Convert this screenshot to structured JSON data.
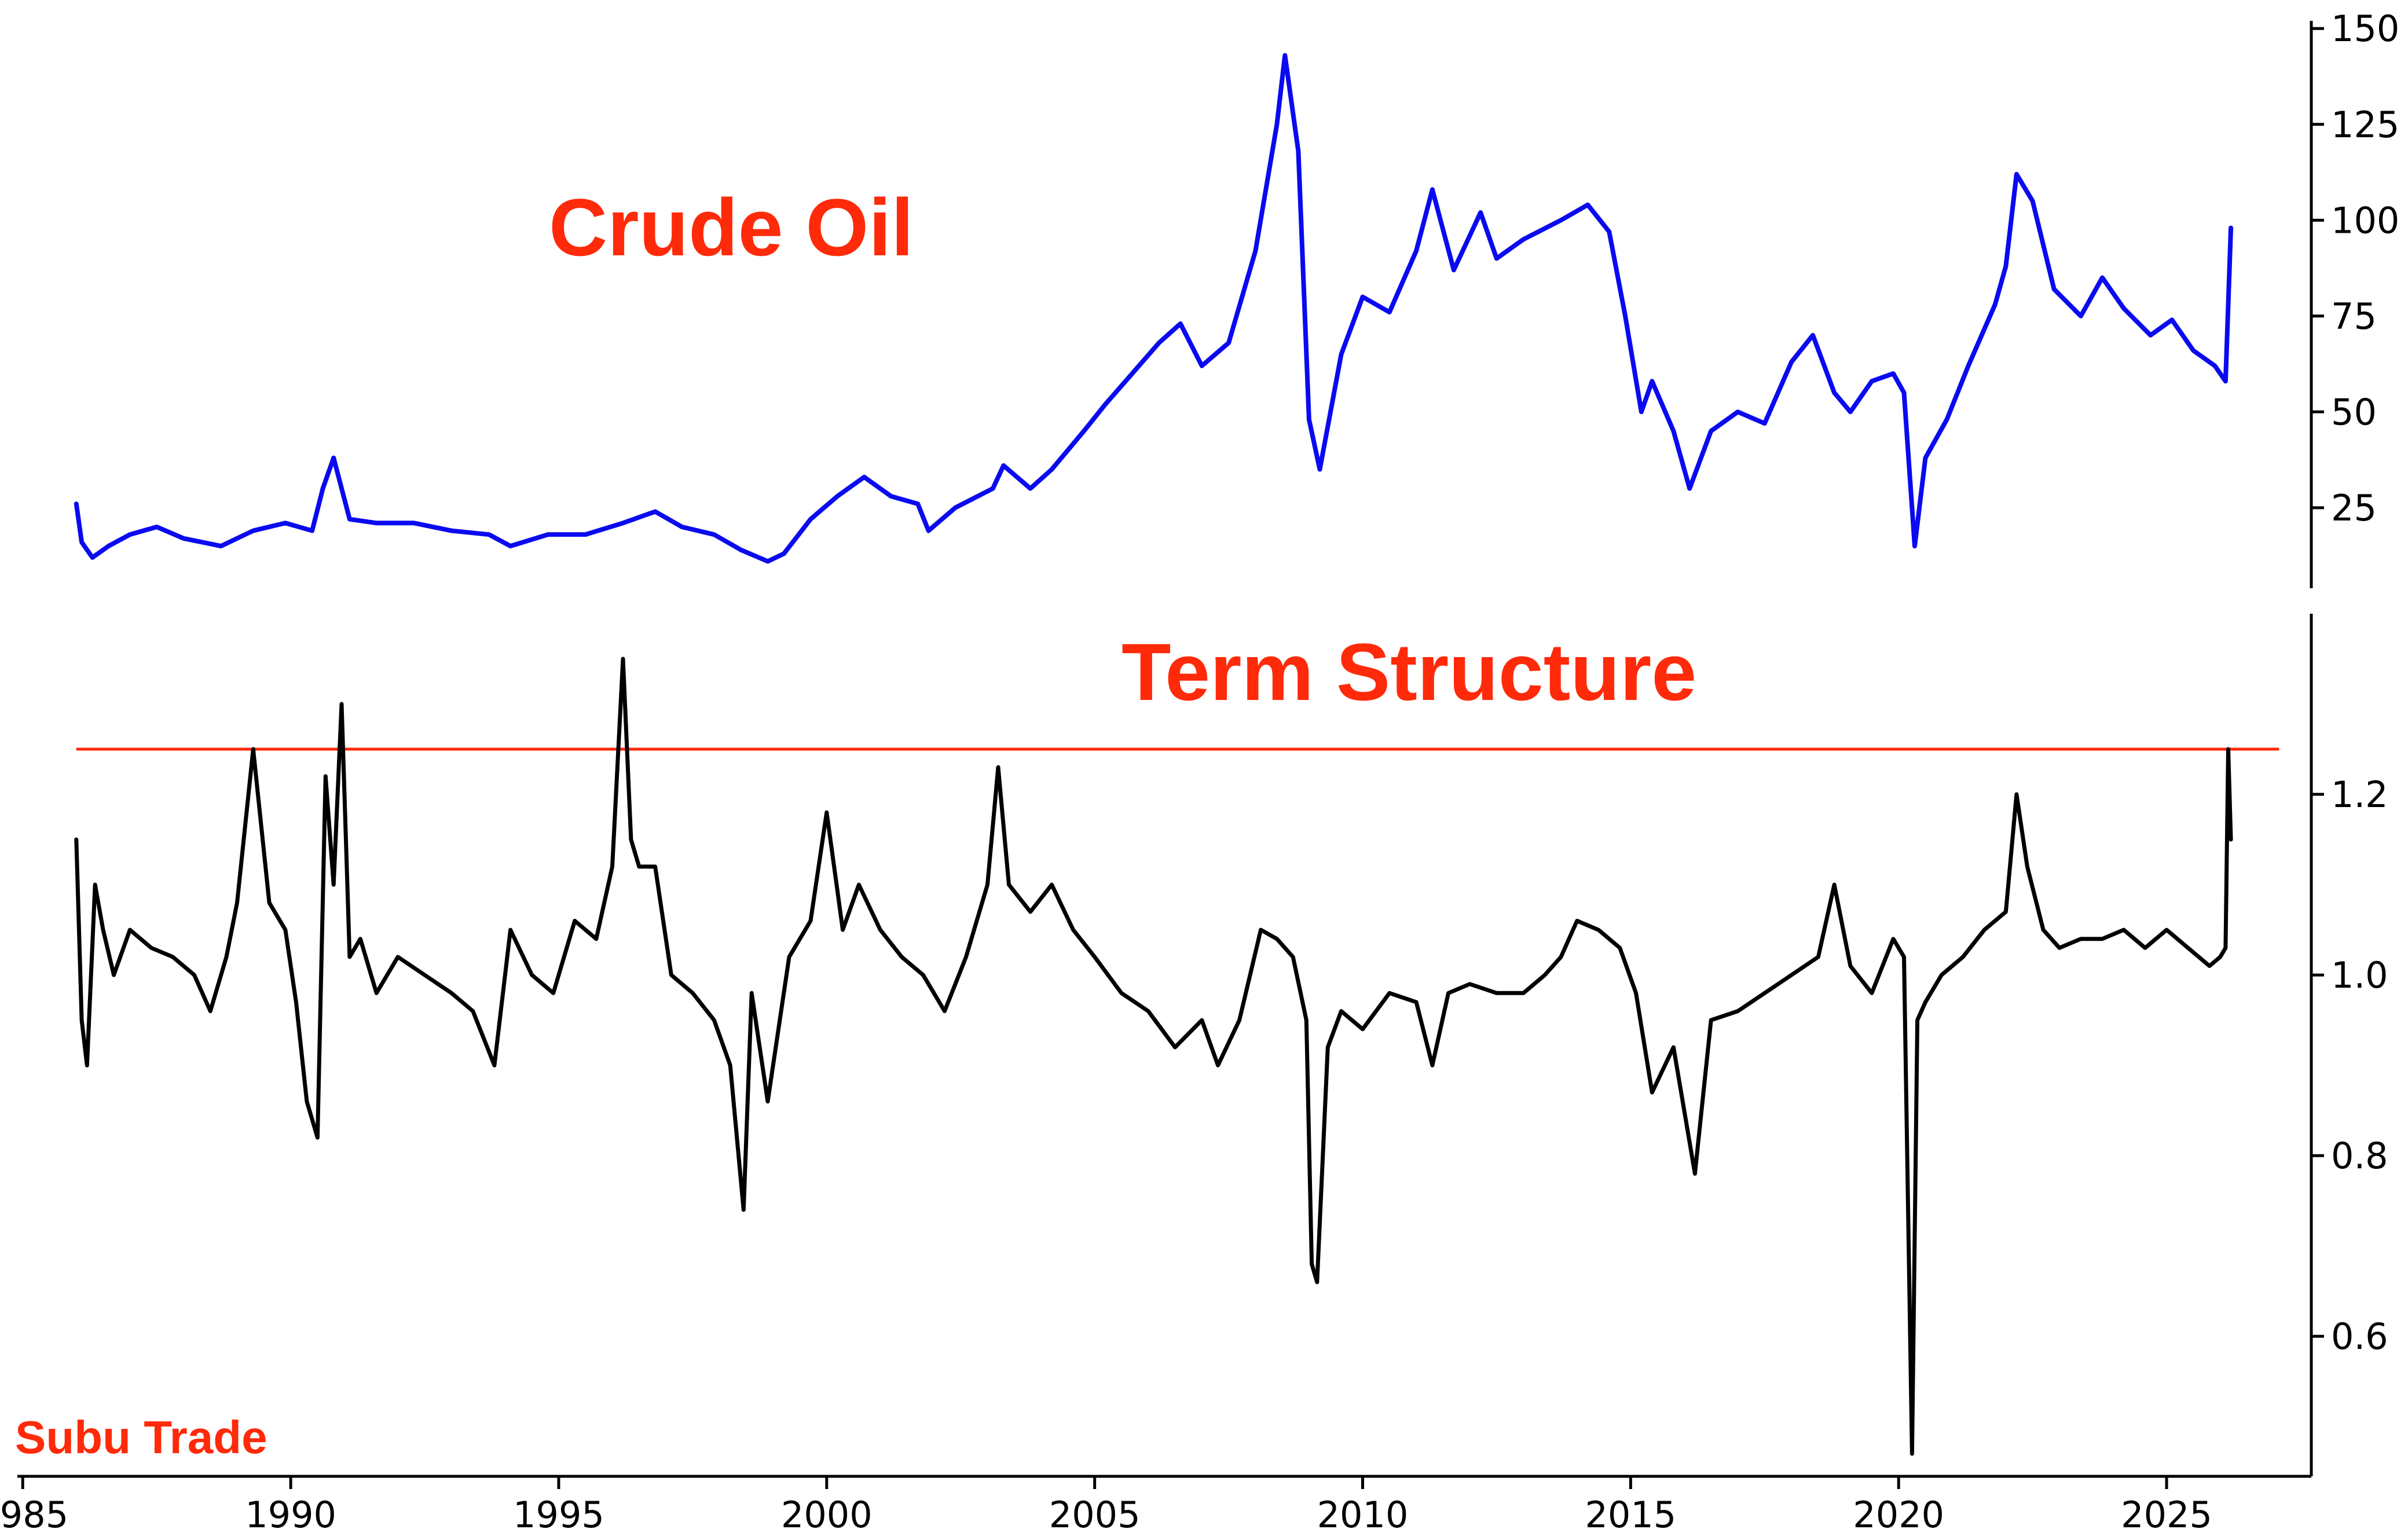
{
  "watermark": "Subu Trade",
  "colors": {
    "crude": "#0a0af0",
    "term": "#000000",
    "threshold": "#ff2a0a",
    "title": "#ff2a0a"
  },
  "chart_data": [
    {
      "type": "line",
      "title": "Crude Oil",
      "ylim": [
        4,
        152
      ],
      "y_ticks": [
        "25",
        "50",
        "75",
        "100",
        "125",
        "150"
      ],
      "y_axis_side": "right",
      "series": [
        {
          "x": [
            1986.0,
            1986.1,
            1986.3,
            1986.6,
            1987.0,
            1987.5,
            1988.0,
            1988.7,
            1989.3,
            1989.9,
            1990.4,
            1990.6,
            1990.8,
            1991.1,
            1991.6,
            1992.3,
            1993.0,
            1993.7,
            1994.1,
            1994.8,
            1995.5,
            1996.2,
            1996.8,
            1997.3,
            1997.9,
            1998.4,
            1998.9,
            1999.2,
            1999.7,
            2000.2,
            2000.7,
            2001.2,
            2001.7,
            2001.9,
            2002.4,
            2003.1,
            2003.3,
            2003.8,
            2004.2,
            2004.8,
            2005.2,
            2005.7,
            2006.2,
            2006.6,
            2007.0,
            2007.5,
            2008.0,
            2008.4,
            2008.55,
            2008.8,
            2009.0,
            2009.2,
            2009.6,
            2010.0,
            2010.5,
            2011.0,
            2011.3,
            2011.7,
            2012.2,
            2012.5,
            2013.0,
            2013.7,
            2014.2,
            2014.6,
            2014.9,
            2015.2,
            2015.4,
            2015.8,
            2016.1,
            2016.5,
            2017.0,
            2017.5,
            2018.0,
            2018.4,
            2018.8,
            2019.1,
            2019.5,
            2019.9,
            2020.1,
            2020.3,
            2020.5,
            2020.9,
            2021.3,
            2021.8,
            2022.0,
            2022.2,
            2022.5,
            2022.9,
            2023.4,
            2023.8,
            2024.2,
            2024.7,
            2025.1,
            2025.5,
            2025.9,
            2026.1,
            2026.2
          ],
          "y": [
            26,
            16,
            12,
            15,
            18,
            20,
            17,
            15,
            19,
            21,
            19,
            30,
            38,
            22,
            21,
            21,
            19,
            18,
            15,
            18,
            18,
            21,
            24,
            20,
            18,
            14,
            11,
            13,
            22,
            28,
            33,
            28,
            26,
            19,
            25,
            30,
            36,
            30,
            35,
            45,
            52,
            60,
            68,
            73,
            62,
            68,
            92,
            125,
            143,
            118,
            48,
            35,
            65,
            80,
            76,
            92,
            108,
            87,
            102,
            90,
            95,
            100,
            104,
            97,
            75,
            50,
            58,
            45,
            30,
            45,
            50,
            47,
            63,
            70,
            55,
            50,
            58,
            60,
            55,
            15,
            38,
            48,
            62,
            78,
            88,
            112,
            105,
            82,
            75,
            85,
            77,
            70,
            74,
            66,
            62,
            58,
            98
          ]
        }
      ]
    },
    {
      "type": "line",
      "title": "Term Structure",
      "ylim": [
        0.445,
        1.4
      ],
      "y_ticks": [
        "0.6",
        "0.8",
        "1.0",
        "1.2"
      ],
      "y_axis_side": "right",
      "x_ticks": [
        "1985",
        "1990",
        "1995",
        "2000",
        "2005",
        "2010",
        "2015",
        "2020",
        "2025"
      ],
      "xlim": [
        1984.9,
        2027.7
      ],
      "threshold": {
        "y": 1.25,
        "x_start": 1986.0,
        "x_end": 2027.1
      },
      "series": [
        {
          "x": [
            1986.0,
            1986.1,
            1986.2,
            1986.35,
            1986.5,
            1986.7,
            1987.0,
            1987.4,
            1987.8,
            1988.2,
            1988.5,
            1988.8,
            1989.0,
            1989.3,
            1989.6,
            1989.9,
            1990.1,
            1990.3,
            1990.5,
            1990.65,
            1990.8,
            1990.95,
            1991.1,
            1991.3,
            1991.6,
            1992.0,
            1992.5,
            1993.0,
            1993.4,
            1993.8,
            1994.1,
            1994.5,
            1994.9,
            1995.3,
            1995.7,
            1996.0,
            1996.2,
            1996.35,
            1996.5,
            1996.8,
            1997.1,
            1997.5,
            1997.9,
            1998.2,
            1998.45,
            1998.6,
            1998.9,
            1999.3,
            1999.7,
            2000.0,
            2000.3,
            2000.6,
            2001.0,
            2001.4,
            2001.8,
            2002.2,
            2002.6,
            2003.0,
            2003.2,
            2003.4,
            2003.8,
            2004.2,
            2004.6,
            2005.0,
            2005.5,
            2006.0,
            2006.5,
            2007.0,
            2007.3,
            2007.7,
            2008.1,
            2008.4,
            2008.7,
            2008.95,
            2009.05,
            2009.15,
            2009.35,
            2009.6,
            2010.0,
            2010.5,
            2011.0,
            2011.3,
            2011.6,
            2012.0,
            2012.5,
            2013.0,
            2013.4,
            2013.7,
            2014.0,
            2014.4,
            2014.8,
            2015.1,
            2015.4,
            2015.8,
            2016.0,
            2016.2,
            2016.5,
            2017.0,
            2017.5,
            2018.0,
            2018.5,
            2018.8,
            2019.1,
            2019.5,
            2019.9,
            2020.1,
            2020.25,
            2020.35,
            2020.5,
            2020.8,
            2021.2,
            2021.6,
            2022.0,
            2022.2,
            2022.4,
            2022.7,
            2023.0,
            2023.4,
            2023.8,
            2024.2,
            2024.6,
            2025.0,
            2025.4,
            2025.8,
            2026.0,
            2026.1,
            2026.15,
            2026.2
          ],
          "y": [
            1.15,
            0.95,
            0.9,
            1.1,
            1.05,
            1.0,
            1.05,
            1.03,
            1.02,
            1.0,
            0.96,
            1.02,
            1.08,
            1.25,
            1.08,
            1.05,
            0.97,
            0.86,
            0.82,
            1.22,
            1.1,
            1.3,
            1.02,
            1.04,
            0.98,
            1.02,
            1.0,
            0.98,
            0.96,
            0.9,
            1.05,
            1.0,
            0.98,
            1.06,
            1.04,
            1.12,
            1.35,
            1.15,
            1.12,
            1.12,
            1.0,
            0.98,
            0.95,
            0.9,
            0.74,
            0.98,
            0.86,
            1.02,
            1.06,
            1.18,
            1.05,
            1.1,
            1.05,
            1.02,
            1.0,
            0.96,
            1.02,
            1.1,
            1.23,
            1.1,
            1.07,
            1.1,
            1.05,
            1.02,
            0.98,
            0.96,
            0.92,
            0.95,
            0.9,
            0.95,
            1.05,
            1.04,
            1.02,
            0.95,
            0.68,
            0.66,
            0.92,
            0.96,
            0.94,
            0.98,
            0.97,
            0.9,
            0.98,
            0.99,
            0.98,
            0.98,
            1.0,
            1.02,
            1.06,
            1.05,
            1.03,
            0.98,
            0.87,
            0.92,
            0.85,
            0.78,
            0.95,
            0.96,
            0.98,
            1.0,
            1.02,
            1.1,
            1.01,
            0.98,
            1.04,
            1.02,
            0.47,
            0.95,
            0.97,
            1.0,
            1.02,
            1.05,
            1.07,
            1.2,
            1.12,
            1.05,
            1.03,
            1.04,
            1.04,
            1.05,
            1.03,
            1.05,
            1.03,
            1.01,
            1.02,
            1.03,
            1.25,
            1.15
          ]
        }
      ]
    }
  ]
}
